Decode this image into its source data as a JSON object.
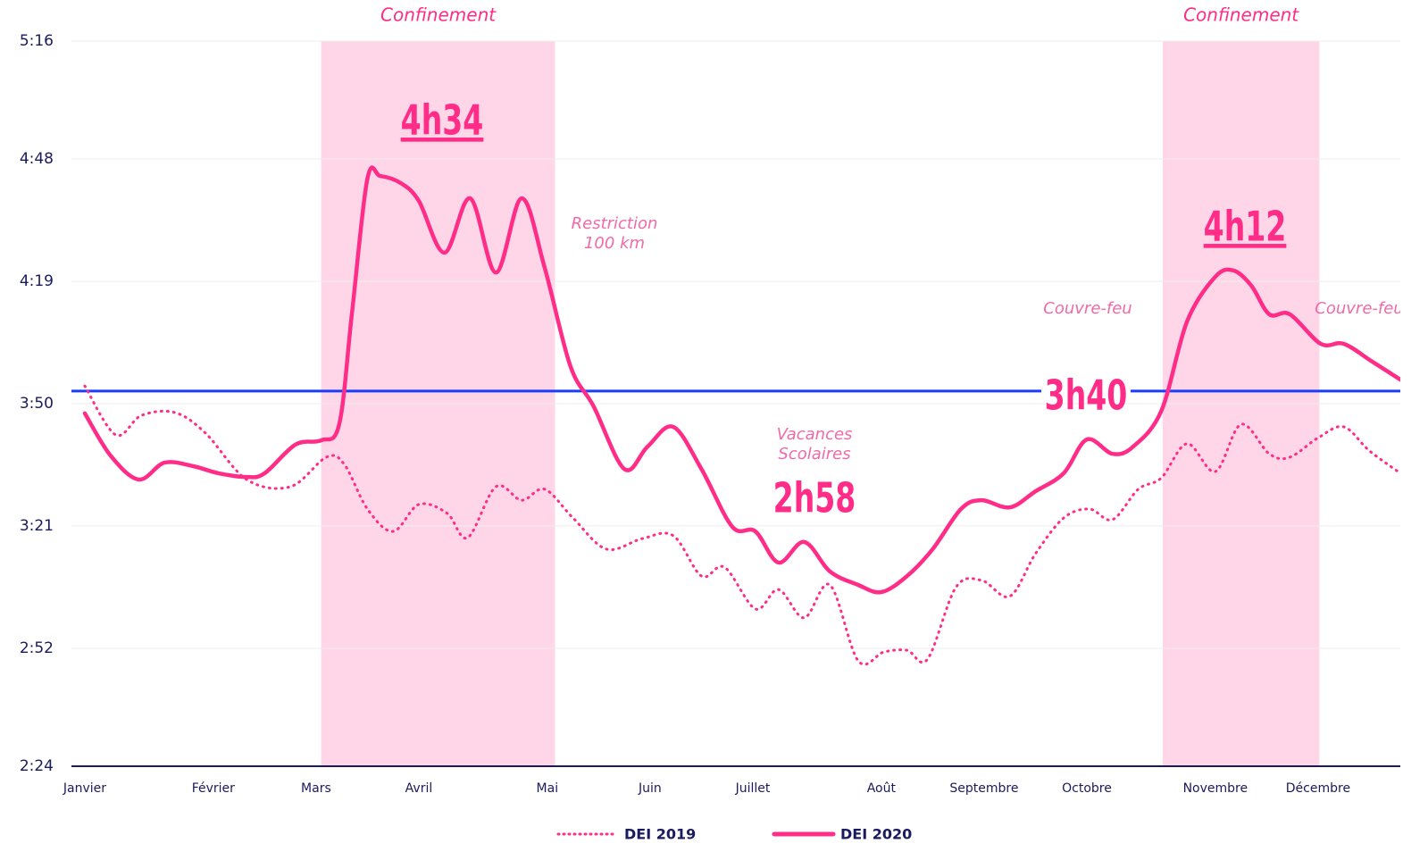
{
  "chart_data": {
    "type": "line",
    "x": null,
    "xlim": [
      -0.52,
      51.2
    ],
    "xticks": [
      {
        "value": 0,
        "label": "Janvier"
      },
      {
        "value": 5,
        "label": "Février"
      },
      {
        "value": 9,
        "label": "Mars"
      },
      {
        "value": 13,
        "label": "Avril"
      },
      {
        "value": 18,
        "label": "Mai"
      },
      {
        "value": 22,
        "label": "Juin"
      },
      {
        "value": 26,
        "label": "Juillet"
      },
      {
        "value": 31,
        "label": "Août"
      },
      {
        "value": 35,
        "label": "Septembre"
      },
      {
        "value": 39,
        "label": "Octobre"
      },
      {
        "value": 44,
        "label": "Novembre"
      },
      {
        "value": 48,
        "label": "Décembre"
      }
    ],
    "ylim": [
      144,
      316
    ],
    "yticks": [
      {
        "value": 144,
        "label": "2:24"
      },
      {
        "value": 172,
        "label": "2:52"
      },
      {
        "value": 201,
        "label": "3:21"
      },
      {
        "value": 230,
        "label": "3:50"
      },
      {
        "value": 259,
        "label": "4:19"
      },
      {
        "value": 288,
        "label": "4:48"
      },
      {
        "value": 316,
        "label": "5:16"
      }
    ],
    "grid": true,
    "series": [
      {
        "name": "DEI 2019",
        "color": "#ff2d87",
        "style": "dotted",
        "x": [
          0,
          1.2,
          2.2,
          3.5,
          4.7,
          6.3,
          8.0,
          9.4,
          10.1,
          11.0,
          12.0,
          13.0,
          14.1,
          14.9,
          16.0,
          17.0,
          17.9,
          19.0,
          20.3,
          21.7,
          22.9,
          24.0,
          24.9,
          26.1,
          27.0,
          28.0,
          29.0,
          30.1,
          31.1,
          32.0,
          32.8,
          33.9,
          34.9,
          36.0,
          37.0,
          38.1,
          39.1,
          40.0,
          41.0,
          41.9,
          42.9,
          44.0,
          45.0,
          46.1,
          46.9,
          48.0,
          49.0,
          50.0,
          51.2
        ],
        "values": [
          234.2,
          222.6,
          227.2,
          227.9,
          223.0,
          212.0,
          210.3,
          217.3,
          215.6,
          205.0,
          199.7,
          206.1,
          204.0,
          198.2,
          210.3,
          207.1,
          209.7,
          202.9,
          195.5,
          198.0,
          198.7,
          189.1,
          191.2,
          181.3,
          185.9,
          179.2,
          187.0,
          169.0,
          171.1,
          171.5,
          169.4,
          186.4,
          188.1,
          184.3,
          194.4,
          202.9,
          205.0,
          202.5,
          209.7,
          212.4,
          220.5,
          213.9,
          225.1,
          218.1,
          217.3,
          221.9,
          224.5,
          218.8,
          213.5
        ]
      },
      {
        "name": "DEI 2020",
        "color": "#ff2d87",
        "style": "solid",
        "x": [
          0,
          1.0,
          2.1,
          3.1,
          4.2,
          5.2,
          6.3,
          7.0,
          8.2,
          9.2,
          9.9,
          10.4,
          11.0,
          11.5,
          12.3,
          13.0,
          14.0,
          15.0,
          16.0,
          17.0,
          17.9,
          18.9,
          19.8,
          21.0,
          21.9,
          22.9,
          24.0,
          25.2,
          26.1,
          27.0,
          28.0,
          29.0,
          30.1,
          31.0,
          32.0,
          33.0,
          34.1,
          34.9,
          36.0,
          37.0,
          38.1,
          39.0,
          40.0,
          40.8,
          41.9,
          42.9,
          44.0,
          44.7,
          45.4,
          46.1,
          46.9,
          48.1,
          49.0,
          50.1,
          51.2
        ],
        "values": [
          227.7,
          217.7,
          212.0,
          216.0,
          215.2,
          213.5,
          212.6,
          213.5,
          220.3,
          221.3,
          225.1,
          251.6,
          283.4,
          284.0,
          282.3,
          278.1,
          265.8,
          278.7,
          261.1,
          278.7,
          262.2,
          238.9,
          229.4,
          214.5,
          219.8,
          224.5,
          214.5,
          200.8,
          199.7,
          192.3,
          197.2,
          190.2,
          187.0,
          185.3,
          189.1,
          195.5,
          205.0,
          207.1,
          205.4,
          209.2,
          213.5,
          221.5,
          218.1,
          219.8,
          228.3,
          249.5,
          260.1,
          261.6,
          258.0,
          251.2,
          251.2,
          244.2,
          244.2,
          240.0,
          235.7
        ]
      }
    ],
    "shaded_regions": [
      {
        "label": "Confinement",
        "start": 9.2,
        "end": 18.3,
        "color": "#ffd6e8"
      },
      {
        "label": "Confinement",
        "start": 41.95,
        "end": 48.05,
        "color": "#ffd6e8"
      }
    ],
    "reference_line": {
      "value": 233,
      "color": "#1a3cff"
    },
    "annotations": [
      [
        "Restriction",
        "100 km"
      ],
      [
        "Vacances",
        "Scolaires"
      ],
      [
        "Couvre-feu"
      ],
      [
        "Couvre-feu"
      ],
      [
        "4h34"
      ],
      [
        "4h12"
      ],
      [
        "2h58"
      ],
      [
        "3h40"
      ]
    ]
  }
}
